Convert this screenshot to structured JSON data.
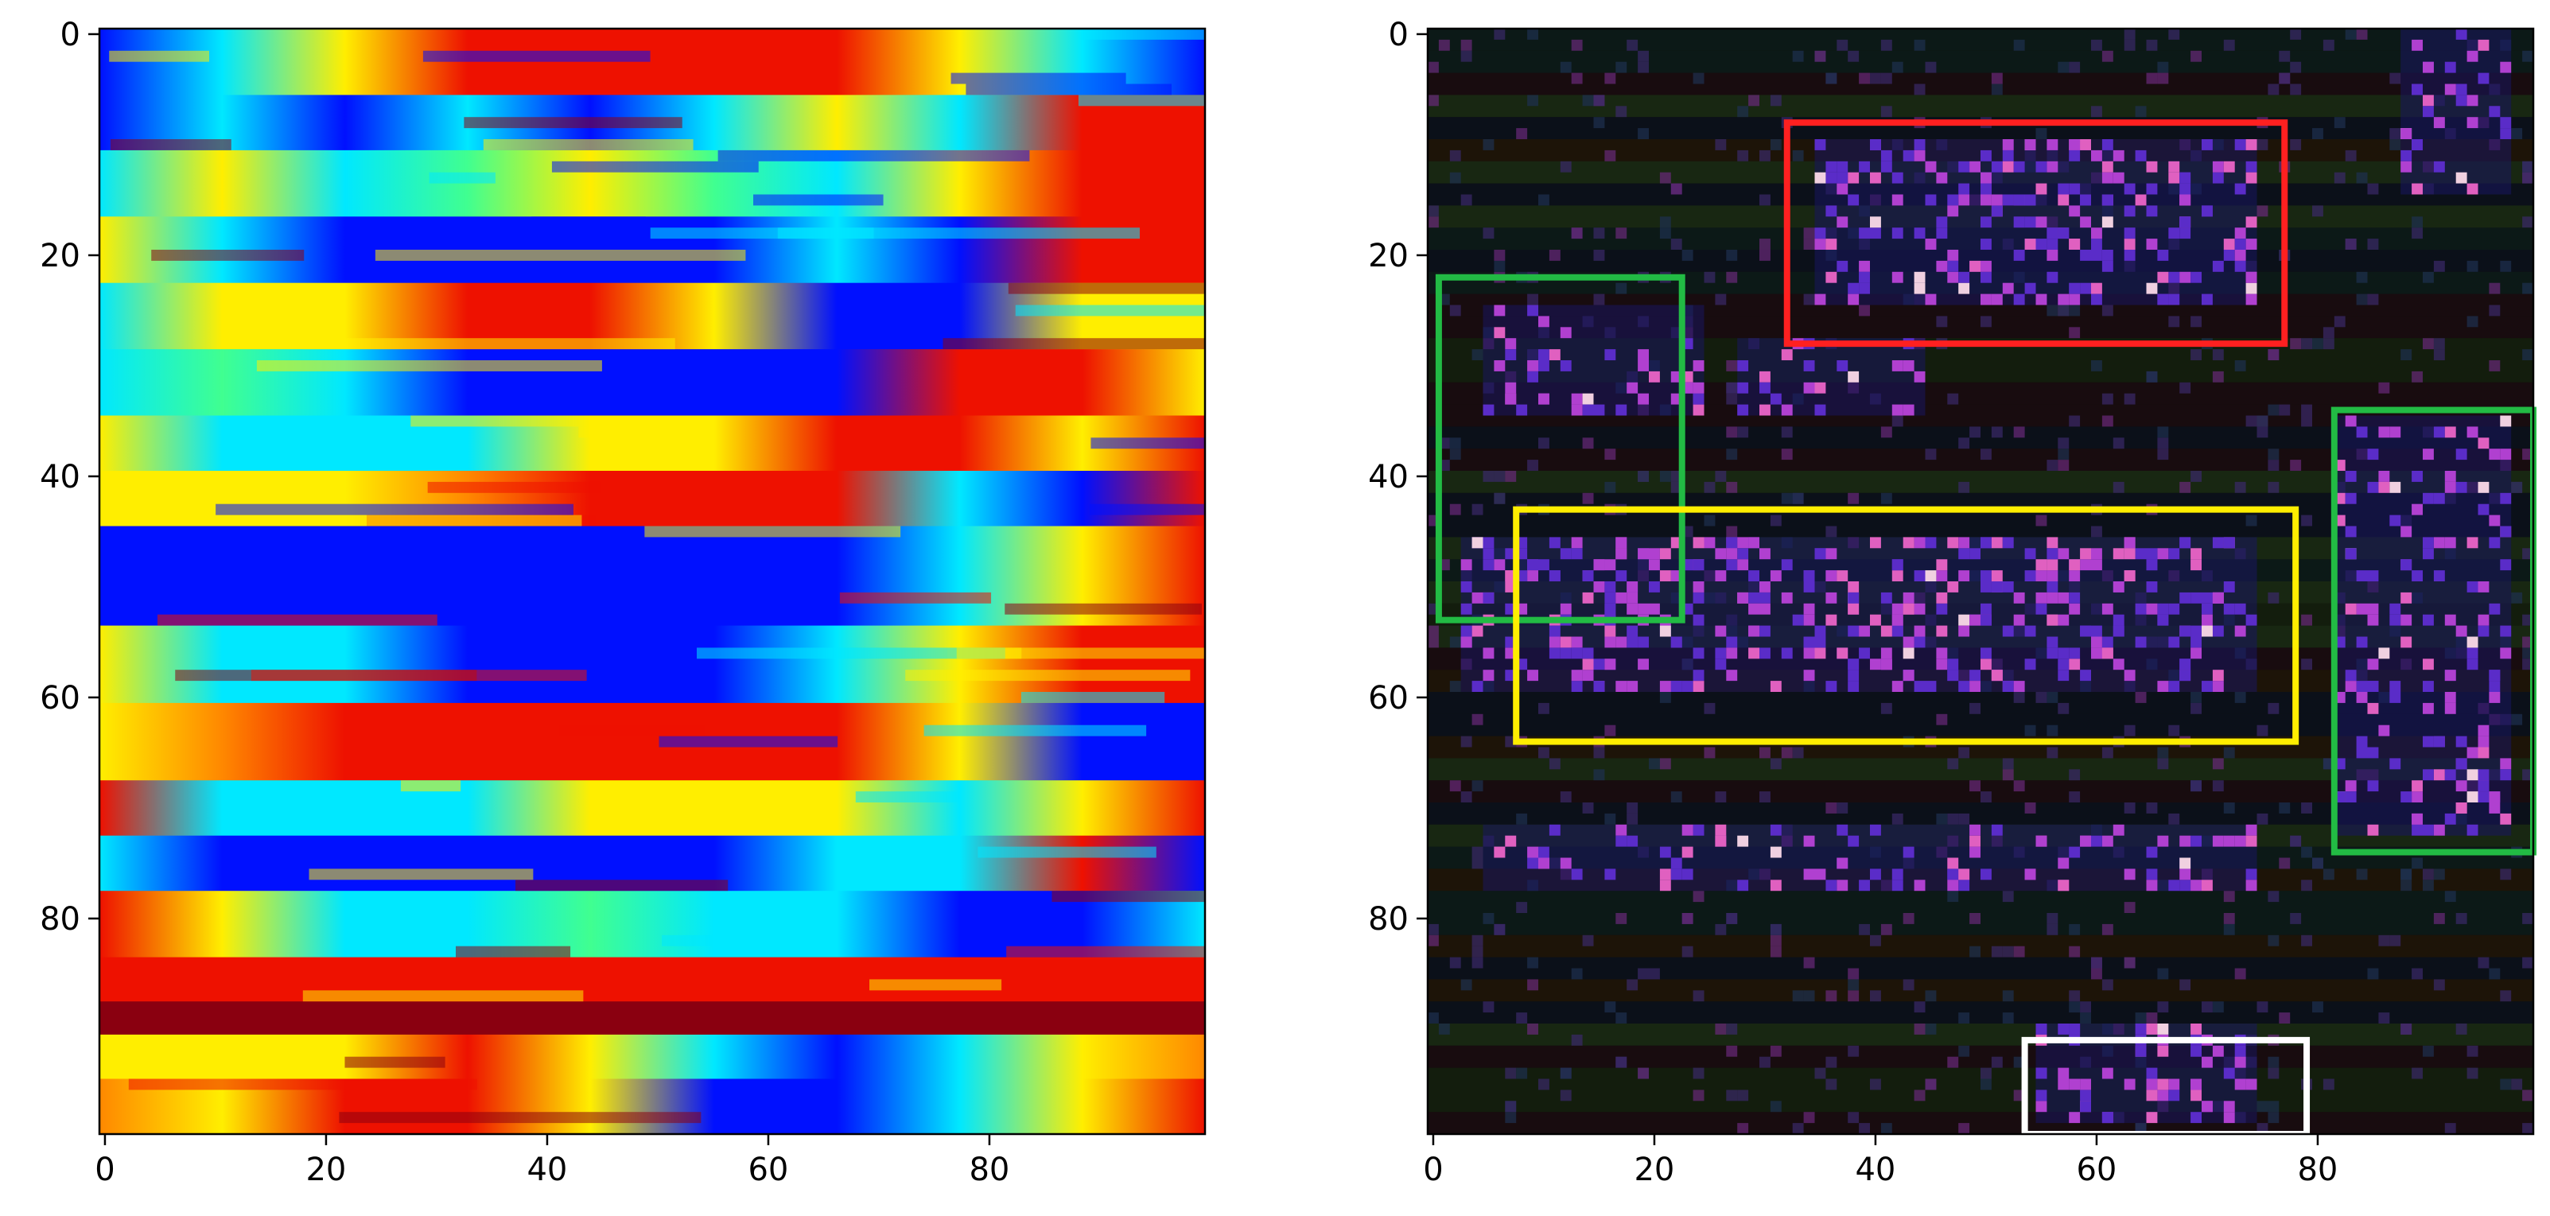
{
  "chart_data": [
    {
      "type": "heatmap",
      "title": "",
      "xlabel": "",
      "ylabel": "",
      "colormap": "jet",
      "grid": false,
      "xlim": [
        -0.5,
        99.5
      ],
      "ylim": [
        99.5,
        -0.5
      ],
      "x_ticks": [
        0,
        20,
        40,
        60,
        80
      ],
      "y_ticks": [
        0,
        20,
        40,
        60,
        80
      ],
      "shape": [
        100,
        100
      ],
      "row_bands": [
        {
          "rows": [
            0,
            5
          ],
          "pattern": [
            "blue",
            "cyan",
            "yellow",
            "red",
            "red",
            "red",
            "red",
            "yellow",
            "cyan",
            "blue"
          ]
        },
        {
          "rows": [
            6,
            10
          ],
          "pattern": [
            "blue",
            "cyan",
            "blue",
            "cyan",
            "blue",
            "cyan",
            "yellow",
            "cyan",
            "red",
            "red"
          ]
        },
        {
          "rows": [
            11,
            16
          ],
          "pattern": [
            "cyan",
            "yellow",
            "cyan",
            "green",
            "yellow",
            "green",
            "cyan",
            "yellow",
            "red",
            "red"
          ]
        },
        {
          "rows": [
            17,
            22
          ],
          "pattern": [
            "yellow",
            "cyan",
            "blue",
            "blue",
            "blue",
            "blue",
            "cyan",
            "blue",
            "red",
            "red"
          ]
        },
        {
          "rows": [
            23,
            28
          ],
          "pattern": [
            "cyan",
            "yellow",
            "yellow",
            "red",
            "red",
            "yellow",
            "blue",
            "blue",
            "yellow",
            "yellow"
          ]
        },
        {
          "rows": [
            29,
            34
          ],
          "pattern": [
            "cyan",
            "green",
            "cyan",
            "blue",
            "blue",
            "blue",
            "blue",
            "red",
            "red",
            "yellow"
          ]
        },
        {
          "rows": [
            35,
            39
          ],
          "pattern": [
            "yellow",
            "cyan",
            "cyan",
            "cyan",
            "yellow",
            "yellow",
            "red",
            "red",
            "yellow",
            "red"
          ]
        },
        {
          "rows": [
            40,
            44
          ],
          "pattern": [
            "yellow",
            "yellow",
            "yellow",
            "orange",
            "red",
            "red",
            "red",
            "cyan",
            "blue",
            "red"
          ]
        },
        {
          "rows": [
            45,
            53
          ],
          "pattern": [
            "blue",
            "blue",
            "blue",
            "blue",
            "blue",
            "blue",
            "blue",
            "cyan",
            "yellow",
            "red"
          ]
        },
        {
          "rows": [
            54,
            60
          ],
          "pattern": [
            "yellow",
            "cyan",
            "cyan",
            "blue",
            "blue",
            "blue",
            "cyan",
            "yellow",
            "red",
            "red"
          ]
        },
        {
          "rows": [
            61,
            67
          ],
          "pattern": [
            "yellow",
            "orange",
            "red",
            "red",
            "red",
            "red",
            "red",
            "yellow",
            "blue",
            "blue"
          ]
        },
        {
          "rows": [
            68,
            72
          ],
          "pattern": [
            "red",
            "cyan",
            "cyan",
            "cyan",
            "yellow",
            "yellow",
            "yellow",
            "cyan",
            "yellow",
            "red"
          ]
        },
        {
          "rows": [
            73,
            77
          ],
          "pattern": [
            "cyan",
            "blue",
            "blue",
            "blue",
            "blue",
            "blue",
            "cyan",
            "cyan",
            "red",
            "blue"
          ]
        },
        {
          "rows": [
            78,
            83
          ],
          "pattern": [
            "red",
            "yellow",
            "cyan",
            "cyan",
            "green",
            "cyan",
            "cyan",
            "blue",
            "blue",
            "cyan"
          ]
        },
        {
          "rows": [
            84,
            87
          ],
          "pattern": [
            "red",
            "red",
            "red",
            "red",
            "red",
            "red",
            "red",
            "red",
            "red",
            "red"
          ]
        },
        {
          "rows": [
            88,
            90
          ],
          "pattern": [
            "darkred",
            "darkred",
            "darkred",
            "darkred",
            "darkred",
            "darkred",
            "darkred",
            "darkred",
            "darkred",
            "darkred"
          ]
        },
        {
          "rows": [
            91,
            94
          ],
          "pattern": [
            "yellow",
            "yellow",
            "yellow",
            "red",
            "yellow",
            "cyan",
            "blue",
            "cyan",
            "yellow",
            "orange"
          ]
        },
        {
          "rows": [
            95,
            99
          ],
          "pattern": [
            "orange",
            "yellow",
            "red",
            "red",
            "yellow",
            "blue",
            "blue",
            "cyan",
            "yellow",
            "red"
          ]
        }
      ]
    },
    {
      "type": "heatmap",
      "title": "",
      "xlabel": "",
      "ylabel": "",
      "colormap": "dark-magenta",
      "grid": false,
      "xlim": [
        -0.5,
        99.5
      ],
      "ylim": [
        99.5,
        -0.5
      ],
      "x_ticks": [
        0,
        20,
        40,
        60,
        80
      ],
      "y_ticks": [
        0,
        20,
        40,
        60,
        80
      ],
      "shape": [
        100,
        100
      ],
      "clusters": [
        {
          "x": [
            35,
            75
          ],
          "y": [
            10,
            25
          ],
          "density": 0.7
        },
        {
          "x": [
            5,
            25
          ],
          "y": [
            25,
            35
          ],
          "density": 0.45
        },
        {
          "x": [
            28,
            45
          ],
          "y": [
            28,
            35
          ],
          "density": 0.4
        },
        {
          "x": [
            3,
            75
          ],
          "y": [
            46,
            60
          ],
          "density": 0.8
        },
        {
          "x": [
            82,
            98
          ],
          "y": [
            35,
            73
          ],
          "density": 0.5
        },
        {
          "x": [
            88,
            98
          ],
          "y": [
            0,
            15
          ],
          "density": 0.45
        },
        {
          "x": [
            5,
            75
          ],
          "y": [
            72,
            78
          ],
          "density": 0.45
        },
        {
          "x": [
            55,
            75
          ],
          "y": [
            90,
            99
          ],
          "density": 0.7
        }
      ],
      "boxes": [
        {
          "color": "#ff2020",
          "x0": 32,
          "x1": 77,
          "y0": 8,
          "y1": 28
        },
        {
          "color": "#22bb44",
          "x0": 0.5,
          "x1": 22.5,
          "y0": 22,
          "y1": 53
        },
        {
          "color": "#ffee00",
          "x0": 7.5,
          "x1": 78,
          "y0": 43,
          "y1": 64
        },
        {
          "color": "#22bb44",
          "x0": 81.5,
          "x1": 99.5,
          "y0": 34,
          "y1": 74
        },
        {
          "color": "#ffffff",
          "x0": 53.5,
          "x1": 79,
          "y0": 91,
          "y1": 99.5
        }
      ]
    }
  ]
}
